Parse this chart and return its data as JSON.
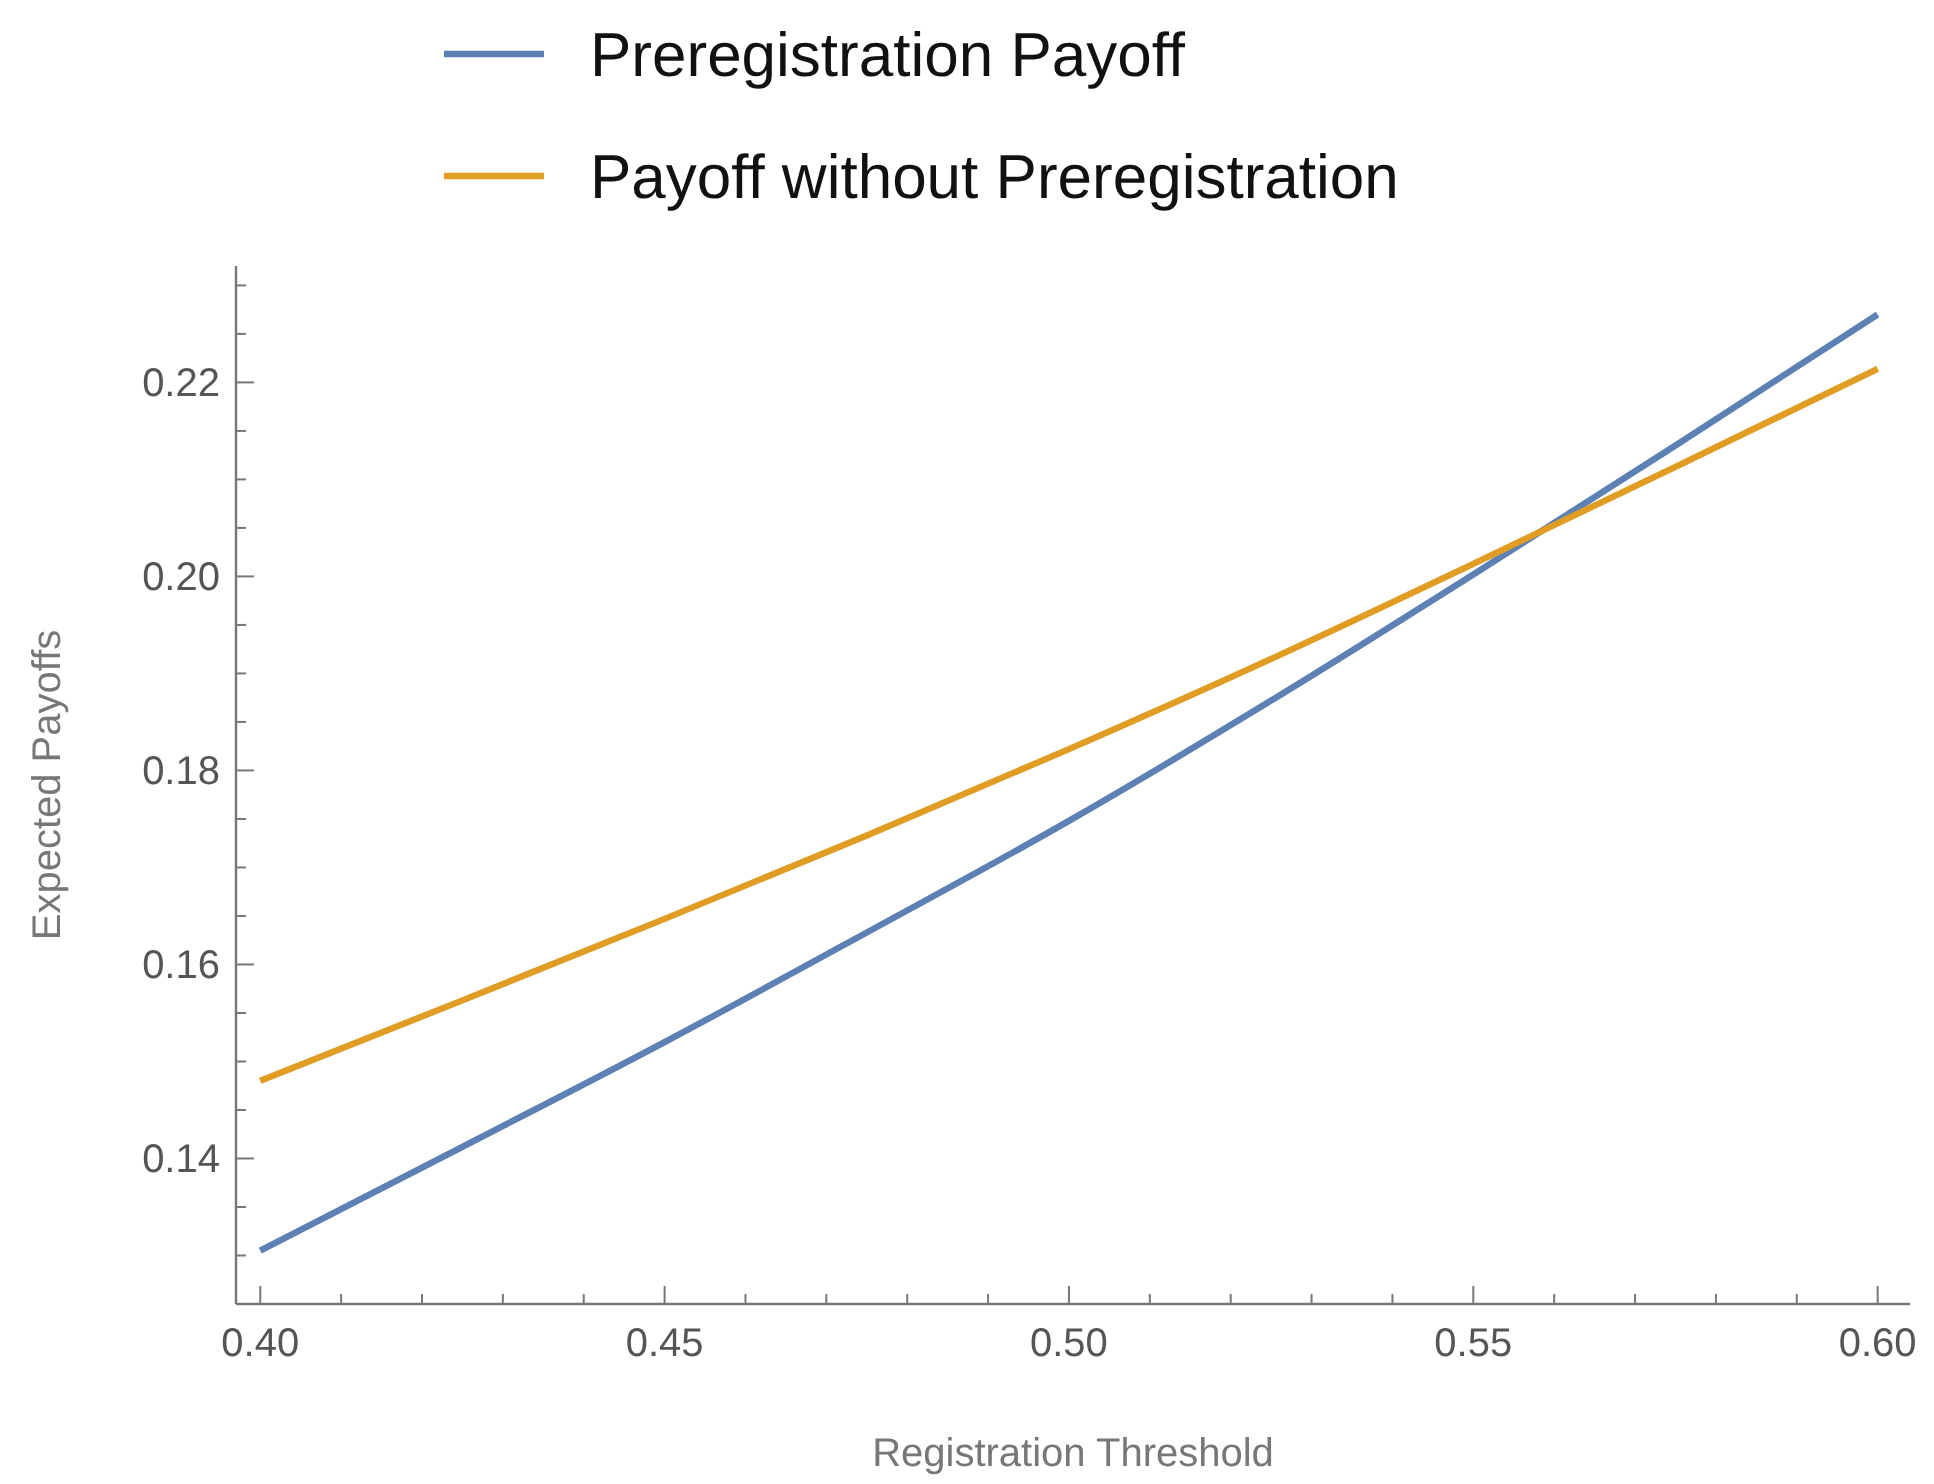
{
  "chart_data": {
    "type": "line",
    "xlabel": "Registration Threshold",
    "ylabel": "Expected Payoffs",
    "legend": "top",
    "grid": false,
    "marker": "none",
    "line_style": "solid",
    "xlim": [
      0.397,
      0.604
    ],
    "ylim": [
      0.125,
      0.232
    ],
    "xticks": [
      {
        "value": 0.4,
        "label": "0.40"
      },
      {
        "value": 0.41,
        "label": null
      },
      {
        "value": 0.42,
        "label": null
      },
      {
        "value": 0.43,
        "label": null
      },
      {
        "value": 0.44,
        "label": null
      },
      {
        "value": 0.45,
        "label": "0.45"
      },
      {
        "value": 0.46,
        "label": null
      },
      {
        "value": 0.47,
        "label": null
      },
      {
        "value": 0.48,
        "label": null
      },
      {
        "value": 0.49,
        "label": null
      },
      {
        "value": 0.5,
        "label": "0.50"
      },
      {
        "value": 0.51,
        "label": null
      },
      {
        "value": 0.52,
        "label": null
      },
      {
        "value": 0.53,
        "label": null
      },
      {
        "value": 0.54,
        "label": null
      },
      {
        "value": 0.55,
        "label": "0.55"
      },
      {
        "value": 0.56,
        "label": null
      },
      {
        "value": 0.57,
        "label": null
      },
      {
        "value": 0.58,
        "label": null
      },
      {
        "value": 0.59,
        "label": null
      },
      {
        "value": 0.6,
        "label": "0.60"
      }
    ],
    "yticks": [
      {
        "value": 0.13,
        "label": null
      },
      {
        "value": 0.135,
        "label": null
      },
      {
        "value": 0.14,
        "label": "0.14"
      },
      {
        "value": 0.145,
        "label": null
      },
      {
        "value": 0.15,
        "label": null
      },
      {
        "value": 0.155,
        "label": null
      },
      {
        "value": 0.16,
        "label": "0.16"
      },
      {
        "value": 0.165,
        "label": null
      },
      {
        "value": 0.17,
        "label": null
      },
      {
        "value": 0.175,
        "label": null
      },
      {
        "value": 0.18,
        "label": "0.18"
      },
      {
        "value": 0.185,
        "label": null
      },
      {
        "value": 0.19,
        "label": null
      },
      {
        "value": 0.195,
        "label": null
      },
      {
        "value": 0.2,
        "label": "0.20"
      },
      {
        "value": 0.205,
        "label": null
      },
      {
        "value": 0.21,
        "label": null
      },
      {
        "value": 0.215,
        "label": null
      },
      {
        "value": 0.22,
        "label": "0.22"
      },
      {
        "value": 0.225,
        "label": null
      },
      {
        "value": 0.23,
        "label": null
      }
    ],
    "x": [
      0.4,
      0.425,
      0.45,
      0.475,
      0.5,
      0.525,
      0.55,
      0.575,
      0.6
    ],
    "series": [
      {
        "name": "Preregistration Payoff",
        "color": "#5e81b5",
        "values": [
          0.1305,
          0.1412,
          0.152,
          0.1633,
          0.1748,
          0.1872,
          0.2002,
          0.2135,
          0.227
        ]
      },
      {
        "name": "Payoff without Preregistration",
        "color": "#e19c24",
        "values": [
          0.148,
          0.1563,
          0.1647,
          0.1733,
          0.1822,
          0.1915,
          0.2013,
          0.2113,
          0.2214
        ]
      }
    ]
  }
}
